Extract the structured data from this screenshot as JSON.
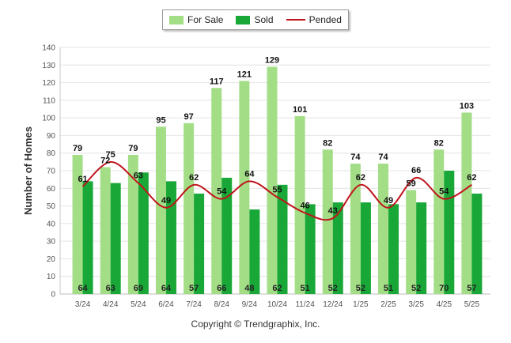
{
  "chart_data": {
    "type": "bar",
    "categories": [
      "3/24",
      "4/24",
      "5/24",
      "6/24",
      "7/24",
      "8/24",
      "9/24",
      "10/24",
      "11/24",
      "12/24",
      "1/25",
      "2/25",
      "3/25",
      "4/25",
      "5/25"
    ],
    "series": [
      {
        "name": "For Sale",
        "type": "bar",
        "color": "#a3de87",
        "values": [
          79,
          72,
          79,
          95,
          97,
          117,
          121,
          129,
          101,
          82,
          74,
          74,
          59,
          82,
          103
        ]
      },
      {
        "name": "Sold",
        "type": "bar",
        "color": "#19a837",
        "values": [
          64,
          63,
          69,
          64,
          57,
          66,
          48,
          62,
          51,
          52,
          52,
          51,
          52,
          70,
          57
        ]
      },
      {
        "name": "Pended",
        "type": "line",
        "color": "#c0141c",
        "values": [
          61,
          75,
          63,
          49,
          62,
          54,
          64,
          55,
          46,
          43,
          62,
          49,
          66,
          54,
          62
        ]
      }
    ],
    "ylabel": "Number of Homes",
    "ylim": [
      0,
      140
    ],
    "yticks": [
      0,
      10,
      20,
      30,
      40,
      50,
      60,
      70,
      80,
      90,
      100,
      110,
      120,
      130,
      140
    ],
    "grid": true,
    "legend_position": "top-center"
  },
  "copyright": "Copyright © Trendgraphix, Inc."
}
